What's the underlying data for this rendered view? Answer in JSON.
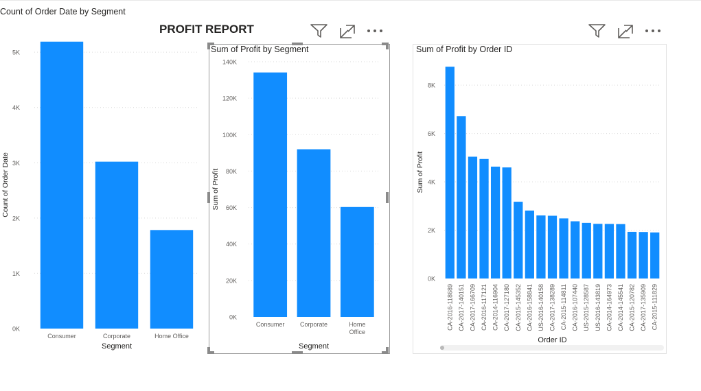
{
  "report": {
    "title": "PROFIT REPORT"
  },
  "toolbar": {
    "icons": [
      "filter-icon",
      "focus-mode-icon",
      "more-options-icon"
    ]
  },
  "colors": {
    "bar": "#118DFF",
    "grid": "#d9d9d9",
    "axis_text": "#605e5c"
  },
  "charts": {
    "order_count": {
      "title": "Count of Order Date by Segment"
    },
    "profit_segment": {
      "title": "Sum of Profit by Segment"
    },
    "profit_order": {
      "title": "Sum of Profit by Order ID"
    }
  },
  "chart_data": [
    {
      "type": "bar",
      "title": "Count of Order Date by Segment",
      "xlabel": "Segment",
      "ylabel": "Count of Order Date",
      "categories": [
        "Consumer",
        "Corporate",
        "Home Office"
      ],
      "values": [
        5191,
        3020,
        1783
      ],
      "ylim": [
        0,
        5200
      ],
      "yticks": [
        0,
        1000,
        2000,
        3000,
        4000,
        5000
      ],
      "ytick_labels": [
        "0K",
        "1K",
        "2K",
        "3K",
        "4K",
        "5K"
      ],
      "grid": true
    },
    {
      "type": "bar",
      "title": "Sum of Profit by Segment",
      "xlabel": "Segment",
      "ylabel": "Sum of Profit",
      "categories": [
        "Consumer",
        "Corporate",
        "Home Office"
      ],
      "values": [
        134119,
        91979,
        60299
      ],
      "ylim": [
        0,
        140000
      ],
      "yticks": [
        0,
        20000,
        40000,
        60000,
        80000,
        100000,
        120000,
        140000
      ],
      "ytick_labels": [
        "0K",
        "20K",
        "40K",
        "60K",
        "80K",
        "100K",
        "120K",
        "140K"
      ],
      "grid": true
    },
    {
      "type": "bar",
      "title": "Sum of Profit by Order ID",
      "xlabel": "Order ID",
      "ylabel": "Sum of Profit",
      "categories": [
        "CA-2016-118689",
        "CA-2017-140151",
        "CA-2017-166709",
        "CA-2016-117121",
        "CA-2014-116904",
        "CA-2017-127180",
        "CA-2015-145352",
        "CA-2016-158841",
        "US-2016-140158",
        "CA-2017-138289",
        "CA-2015-114811",
        "CA-2016-107440",
        "US-2015-128587",
        "US-2016-143819",
        "CA-2014-164973",
        "CA-2014-145541",
        "CA-2015-120782",
        "CA-2017-135909",
        "CA-2015-111829"
      ],
      "values": [
        8763,
        6720,
        5040,
        4946,
        4630,
        4597,
        3177,
        2812,
        2609,
        2597,
        2487,
        2368,
        2303,
        2262,
        2258,
        2252,
        1932,
        1925,
        1906
      ],
      "ylim": [
        0,
        8800
      ],
      "yticks": [
        0,
        2000,
        4000,
        6000,
        8000
      ],
      "ytick_labels": [
        "0K",
        "2K",
        "4K",
        "6K",
        "8K"
      ],
      "grid": true
    }
  ]
}
